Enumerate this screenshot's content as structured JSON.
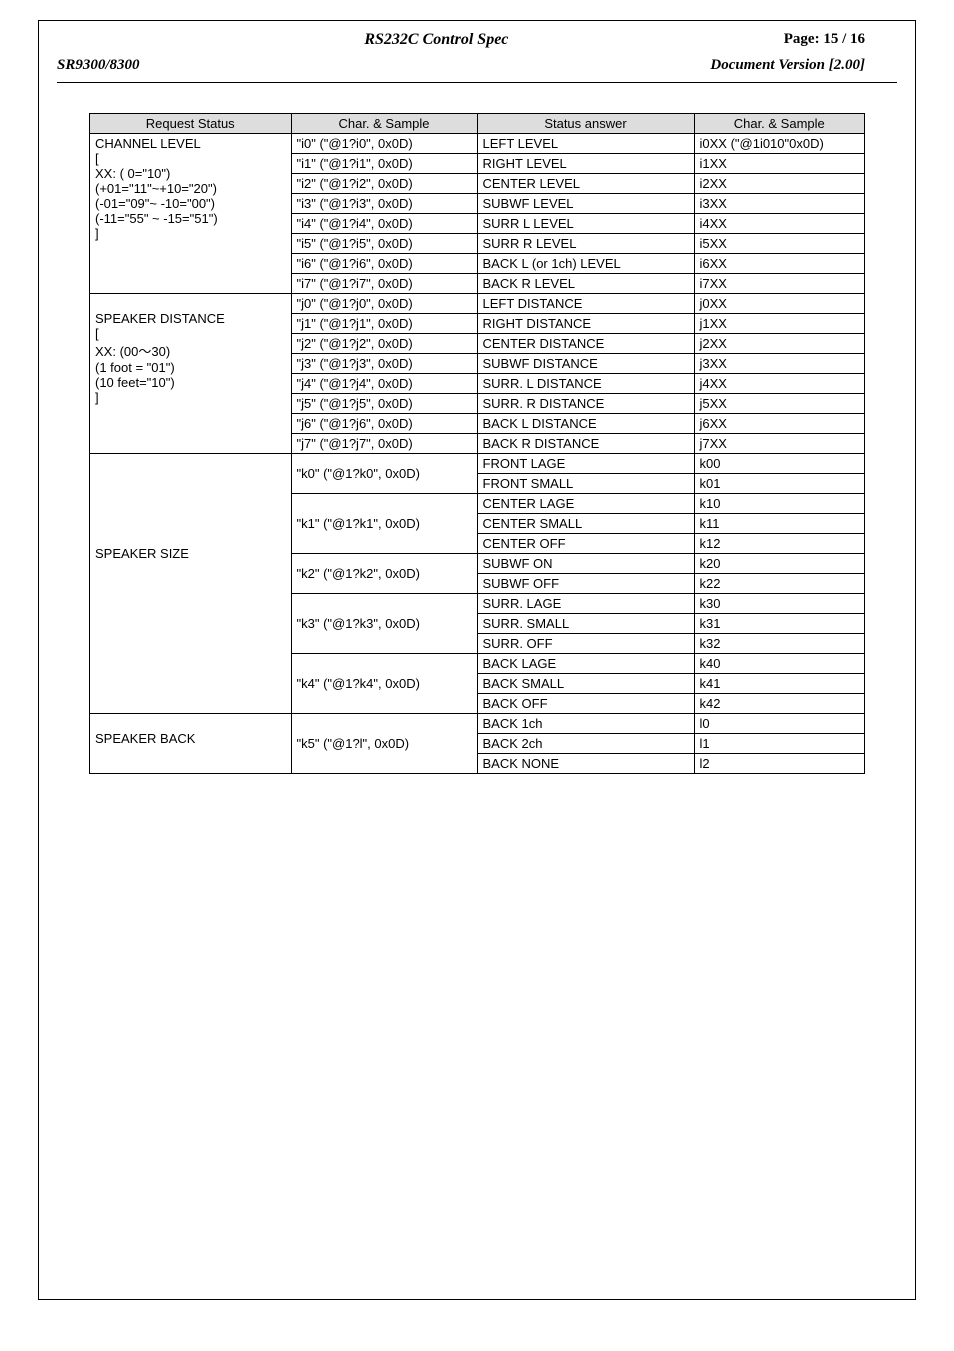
{
  "header": {
    "title_center": "RS232C Control Spec",
    "page_label": "Page: 15 / 16",
    "model": "SR9300/8300",
    "doc_version": "Document Version [2.00]"
  },
  "table": {
    "headers": [
      "Request Status",
      "Char. & Sample",
      "Status answer",
      "Char. & Sample"
    ],
    "groups": [
      {
        "label_lines": [
          "CHANNEL LEVEL",
          "[",
          " XX: ( 0=\"10\")",
          " (+01=\"11\"~+10=\"20\")",
          " (-01=\"09\"~ -10=\"00\")",
          " (-11=\"55\" ~ -15=\"51\")",
          "]"
        ],
        "rows": [
          {
            "char1": "\"i0\" (\"@1?i0\", 0x0D)",
            "ans": "LEFT LEVEL",
            "char2": "i0XX (\"@1i010\"0x0D)"
          },
          {
            "char1": "\"i1\" (\"@1?i1\", 0x0D)",
            "ans": "RIGHT LEVEL",
            "char2": "i1XX"
          },
          {
            "char1": "\"i2\" (\"@1?i2\", 0x0D)",
            "ans": "CENTER LEVEL",
            "char2": "i2XX"
          },
          {
            "char1": "\"i3\" (\"@1?i3\", 0x0D)",
            "ans": "SUBWF LEVEL",
            "char2": "i3XX"
          },
          {
            "char1": "\"i4\" (\"@1?i4\", 0x0D)",
            "ans": "SURR L LEVEL",
            "char2": "i4XX"
          },
          {
            "char1": "\"i5\" (\"@1?i5\", 0x0D)",
            "ans": "SURR R LEVEL",
            "char2": "i5XX"
          },
          {
            "char1": "\"i6\" (\"@1?i6\", 0x0D)",
            "ans": "BACK L (or 1ch) LEVEL",
            "char2": "i6XX"
          },
          {
            "char1": "\"i7\" (\"@1?i7\", 0x0D)",
            "ans": "BACK R LEVEL",
            "char2": "i7XX"
          }
        ]
      },
      {
        "label_lines": [
          "",
          "SPEAKER DISTANCE",
          "[",
          " XX: (00～30)",
          " (1 foot = \"01\")",
          " (10 feet=\"10\")",
          "]"
        ],
        "rows": [
          {
            "char1": "\"j0\" (\"@1?j0\", 0x0D)",
            "ans": "LEFT DISTANCE",
            "char2": "j0XX"
          },
          {
            "char1": "\"j1\" (\"@1?j1\", 0x0D)",
            "ans": "RIGHT DISTANCE",
            "char2": "j1XX"
          },
          {
            "char1": "\"j2\" (\"@1?j2\", 0x0D)",
            "ans": "CENTER DISTANCE",
            "char2": "j2XX"
          },
          {
            "char1": "\"j3\" (\"@1?j3\", 0x0D)",
            "ans": "SUBWF DISTANCE",
            "char2": "j3XX"
          },
          {
            "char1": "\"j4\" (\"@1?j4\", 0x0D)",
            "ans": "SURR. L DISTANCE",
            "char2": "j4XX"
          },
          {
            "char1": "\"j5\" (\"@1?j5\", 0x0D)",
            "ans": "SURR. R DISTANCE",
            "char2": "j5XX"
          },
          {
            "char1": "\"j6\" (\"@1?j6\", 0x0D)",
            "ans": "BACK L DISTANCE",
            "char2": "j6XX"
          },
          {
            "char1": "\"j7\" (\"@1?j7\", 0x0D)",
            "ans": "BACK R DISTANCE",
            "char2": "j7XX"
          }
        ]
      },
      {
        "label_lines": [
          "",
          "",
          "",
          "",
          "",
          "",
          "SPEAKER SIZE"
        ],
        "subgroups": [
          {
            "char1": "\"k0\" (\"@1?k0\", 0x0D)",
            "rows": [
              {
                "ans": "FRONT LAGE",
                "char2": "k00"
              },
              {
                "ans": "FRONT SMALL",
                "char2": "k01"
              }
            ]
          },
          {
            "char1": "\"k1\" (\"@1?k1\", 0x0D)",
            "rows": [
              {
                "ans": "CENTER LAGE",
                "char2": "k10"
              },
              {
                "ans": "CENTER SMALL",
                "char2": "k11"
              },
              {
                "ans": "CENTER OFF",
                "char2": "k12"
              }
            ]
          },
          {
            "char1": "\"k2\" (\"@1?k2\", 0x0D)",
            "rows": [
              {
                "ans": "SUBWF ON",
                "char2": "k20"
              },
              {
                "ans": "SUBWF OFF",
                "char2": "k22"
              }
            ]
          },
          {
            "char1": "\"k3\" (\"@1?k3\", 0x0D)",
            "rows": [
              {
                "ans": "SURR. LAGE",
                "char2": "k30"
              },
              {
                "ans": "SURR. SMALL",
                "char2": "k31"
              },
              {
                "ans": "SURR. OFF",
                "char2": "k32"
              }
            ]
          },
          {
            "char1": "\"k4\" (\"@1?k4\", 0x0D)",
            "rows": [
              {
                "ans": "BACK LAGE",
                "char2": "k40"
              },
              {
                "ans": "BACK SMALL",
                "char2": "k41"
              },
              {
                "ans": "BACK OFF",
                "char2": "k42"
              }
            ]
          }
        ]
      },
      {
        "label_lines": [
          "",
          "SPEAKER BACK"
        ],
        "subgroups": [
          {
            "char1": "\"k5\" (\"@1?l\", 0x0D)",
            "rows": [
              {
                "ans": "BACK 1ch",
                "char2": "l0"
              },
              {
                "ans": "BACK 2ch",
                "char2": "l1"
              },
              {
                "ans": "BACK NONE",
                "char2": "l2"
              }
            ]
          }
        ]
      }
    ]
  }
}
